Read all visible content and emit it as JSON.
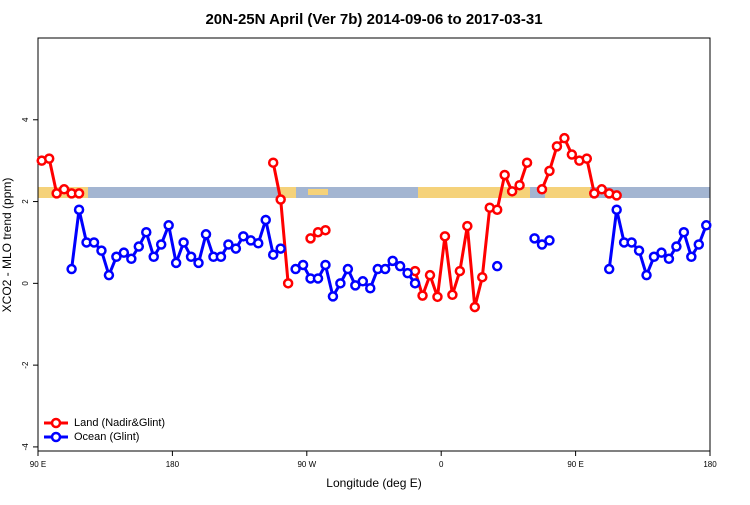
{
  "chart_data": {
    "type": "line",
    "title": "20N-25N April (Ver 7b)   2014-09-06 to 2017-03-31",
    "x_label": "Longitude (deg E)",
    "y_label": "XCO2 - MLO trend (ppm)",
    "xlim": [
      90,
      540
    ],
    "ylim": [
      -4.1,
      6
    ],
    "xticks": [
      {
        "value": 90,
        "label": "90 E"
      },
      180,
      {
        "value": 270,
        "label": "90 W"
      },
      {
        "value": 360,
        "label": "0"
      },
      {
        "value": 450,
        "label": "90 E"
      },
      {
        "value": 540,
        "label": "180"
      }
    ],
    "yticks": [
      -4,
      -2,
      0,
      2,
      4
    ],
    "legend": "bottom-left",
    "x": [
      92.5,
      97.5,
      102.5,
      107.5,
      112.5,
      117.5,
      122.5,
      127.5,
      132.5,
      137.5,
      142.5,
      147.5,
      152.5,
      157.5,
      162.5,
      167.5,
      172.5,
      177.5,
      182.5,
      187.5,
      192.5,
      197.5,
      202.5,
      207.5,
      212.5,
      217.5,
      222.5,
      227.5,
      232.5,
      237.5,
      242.5,
      247.5,
      252.5,
      257.5,
      262.5,
      267.5,
      272.5,
      277.5,
      282.5,
      287.5,
      292.5,
      297.5,
      302.5,
      307.5,
      312.5,
      317.5,
      322.5,
      327.5,
      332.5,
      337.5,
      342.5,
      347.5,
      352.5,
      357.5,
      362.5,
      367.5,
      372.5,
      377.5,
      382.5,
      387.5,
      392.5,
      397.5,
      402.5,
      407.5,
      412.5,
      417.5,
      422.5,
      427.5,
      432.5,
      437.5,
      442.5,
      447.5,
      452.5,
      457.5,
      462.5,
      467.5,
      472.5,
      477.5,
      482.5,
      487.5,
      492.5,
      497.5,
      502.5,
      507.5,
      512.5,
      517.5,
      522.5,
      527.5,
      532.5,
      537.5
    ],
    "series": [
      {
        "name": "Land (Nadir&Glint)",
        "color": "#ff0000",
        "values": [
          3.0,
          3.05,
          2.2,
          2.3,
          2.2,
          2.2,
          null,
          null,
          null,
          null,
          null,
          null,
          null,
          null,
          null,
          null,
          null,
          null,
          null,
          null,
          null,
          null,
          null,
          null,
          null,
          null,
          null,
          null,
          null,
          null,
          null,
          2.95,
          2.05,
          0.0,
          null,
          null,
          1.1,
          1.25,
          1.3,
          null,
          null,
          null,
          null,
          null,
          null,
          null,
          null,
          null,
          null,
          null,
          0.3,
          -0.3,
          0.2,
          -0.33,
          1.15,
          -0.28,
          0.3,
          1.4,
          -0.58,
          0.15,
          1.85,
          1.8,
          2.65,
          2.25,
          2.4,
          2.95,
          null,
          2.3,
          2.75,
          3.35,
          3.55,
          3.15,
          3.0,
          3.05,
          2.2,
          2.3,
          2.2,
          2.15,
          null,
          null,
          null,
          null,
          null,
          null,
          null,
          null,
          null,
          null,
          null,
          null
        ]
      },
      {
        "name": "Ocean (Glint)",
        "color": "#0000ff",
        "values": [
          null,
          null,
          null,
          null,
          0.35,
          1.8,
          1.0,
          1.0,
          0.8,
          0.2,
          0.65,
          0.75,
          0.6,
          0.9,
          1.25,
          0.65,
          0.95,
          1.42,
          0.5,
          1.0,
          0.65,
          0.5,
          1.2,
          0.65,
          0.65,
          0.95,
          0.85,
          1.15,
          1.05,
          0.98,
          1.55,
          0.7,
          0.85,
          null,
          0.35,
          0.45,
          0.12,
          0.12,
          0.45,
          -0.32,
          0.0,
          0.35,
          -0.05,
          0.05,
          -0.12,
          0.35,
          0.35,
          0.55,
          0.42,
          0.25,
          0.0,
          null,
          null,
          null,
          null,
          null,
          null,
          null,
          null,
          null,
          null,
          0.42,
          null,
          null,
          null,
          null,
          1.1,
          0.95,
          1.05,
          null,
          null,
          null,
          null,
          null,
          null,
          null,
          0.35,
          1.8,
          1.0,
          1.0,
          0.8,
          0.2,
          0.65,
          0.75,
          0.6,
          0.9,
          1.25,
          0.65,
          0.95,
          1.42
        ]
      }
    ]
  }
}
